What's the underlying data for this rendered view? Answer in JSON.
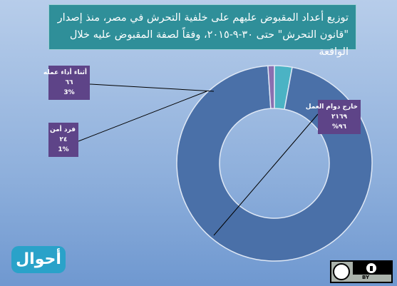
{
  "chart_data": {
    "type": "donut",
    "title": "توزيع أعداد المقبوض عليهم على خلفية التحرش في مصر، منذ إصدار \"قانون التحرش\" حتى ٣٠-٩-٢٠١٥، وفقاً لصفة المقبوض عليه خلال الواقعة",
    "categories": [
      "أثناء أداء عمله",
      "خارج دوام العمل",
      "فرد أمن"
    ],
    "values": [
      66,
      2169,
      24
    ],
    "value_labels": [
      "٦٦",
      "٢١٦٩",
      "٢٤"
    ],
    "percentages": [
      3,
      96,
      1
    ],
    "percentage_labels": [
      "3%",
      "٩٦%",
      "1%"
    ],
    "colors": [
      "#4bb3c4",
      "#4a70a8",
      "#8a6fb0"
    ]
  },
  "branding": {
    "logo": "أحوال",
    "license": "BY"
  }
}
